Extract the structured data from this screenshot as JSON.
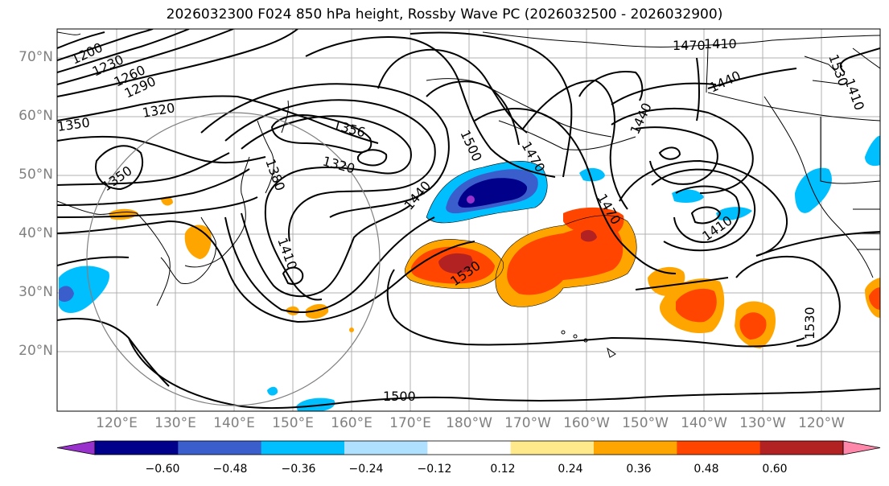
{
  "title": "2026032300 F024 850 hPa height, Rossby Wave PC (2026032500 - 2026032900)",
  "latitude_labels": [
    "70°N",
    "60°N",
    "50°N",
    "40°N",
    "30°N",
    "20°N"
  ],
  "longitude_labels": [
    "120°E",
    "130°E",
    "140°E",
    "150°E",
    "160°E",
    "170°E",
    "180°W",
    "170°W",
    "160°W",
    "150°W",
    "140°W",
    "130°W",
    "120°W"
  ],
  "contour_labels": [
    "1200",
    "1230",
    "1260",
    "1290",
    "1320",
    "1350",
    "1350",
    "1356",
    "1320",
    "1380",
    "1410",
    "1440",
    "1500",
    "1530",
    "1470",
    "1440",
    "1410",
    "1470",
    "1530",
    "1500",
    "1530",
    "1410",
    "1410",
    "1440",
    "1470"
  ],
  "colorbar": {
    "tick_labels": [
      "−0.60",
      "−0.48",
      "−0.36",
      "−0.24",
      "−0.12",
      "0.12",
      "0.24",
      "0.36",
      "0.48",
      "0.60"
    ],
    "colors": [
      "#9932cc",
      "#00008b",
      "#3a5fcd",
      "#00bfff",
      "#b0e0ff",
      "#ffffff",
      "#ffe98a",
      "#ffa500",
      "#ff4500",
      "#b22222",
      "#ff88aa"
    ]
  }
}
